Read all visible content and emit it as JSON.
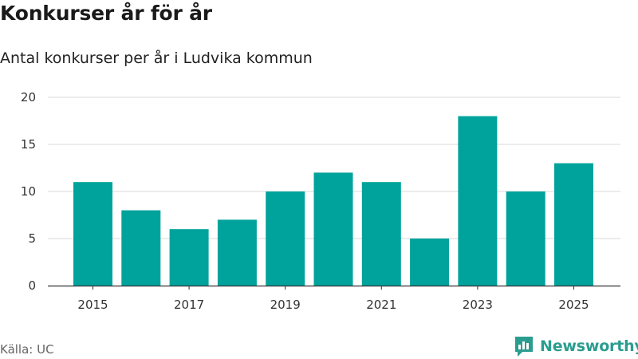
{
  "header": {
    "title": "Konkurser år för år",
    "subtitle": "Antal konkurser per år i Ludvika kommun"
  },
  "footer": {
    "source": "Källa: UC",
    "brand": "Newsworthy"
  },
  "colors": {
    "bar": "#00a39b",
    "grid": "#d9d9d9",
    "axis": "#333333",
    "brand": "#2a9d8f"
  },
  "chart_data": {
    "type": "bar",
    "title": "Konkurser år för år",
    "subtitle": "Antal konkurser per år i Ludvika kommun",
    "xlabel": "",
    "ylabel": "",
    "categories": [
      "2015",
      "2016",
      "2017",
      "2018",
      "2019",
      "2020",
      "2021",
      "2022",
      "2023",
      "2024",
      "2025"
    ],
    "values": [
      11,
      8,
      6,
      7,
      10,
      12,
      11,
      5,
      18,
      10,
      13
    ],
    "x_tick_labels": [
      "2015",
      "2017",
      "2019",
      "2021",
      "2023",
      "2025"
    ],
    "y_ticks": [
      0,
      5,
      10,
      15,
      20
    ],
    "ylim": [
      0,
      20
    ],
    "grid": true,
    "legend": "none"
  }
}
